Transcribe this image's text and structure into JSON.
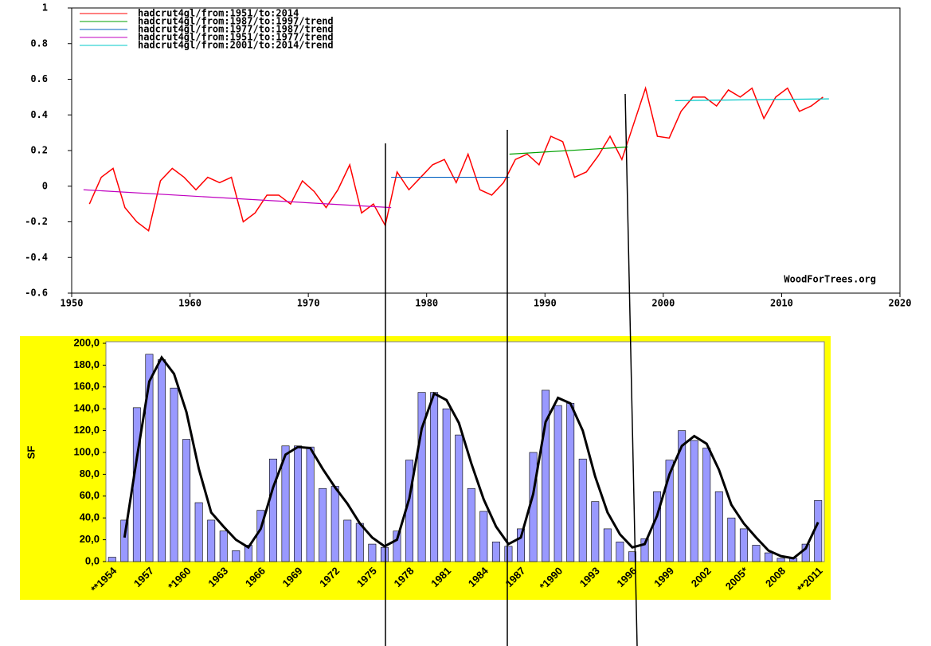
{
  "chart_data": [
    {
      "type": "line",
      "annotation": "WoodForTrees.org",
      "xlim": [
        1950,
        2020
      ],
      "xticks": [
        1950,
        1960,
        1970,
        1980,
        1990,
        2000,
        2010,
        2020
      ],
      "ylim": [
        -0.6,
        1
      ],
      "yticks": [
        -0.6,
        -0.4,
        -0.2,
        0,
        0.2,
        0.4,
        0.6,
        0.8,
        1
      ],
      "series": [
        {
          "name": "hadcrut4gl/from:1951/to:2014",
          "color": "#ff0000",
          "x": [
            1951.5,
            1952.5,
            1953.5,
            1954.5,
            1955.5,
            1956.5,
            1957.5,
            1958.5,
            1959.5,
            1960.5,
            1961.5,
            1962.5,
            1963.5,
            1964.5,
            1965.5,
            1966.5,
            1967.5,
            1968.5,
            1969.5,
            1970.5,
            1971.5,
            1972.5,
            1973.5,
            1974.5,
            1975.5,
            1976.5,
            1977.5,
            1978.5,
            1979.5,
            1980.5,
            1981.5,
            1982.5,
            1983.5,
            1984.5,
            1985.5,
            1986.5,
            1987.5,
            1988.5,
            1989.5,
            1990.5,
            1991.5,
            1992.5,
            1993.5,
            1994.5,
            1995.5,
            1996.5,
            1997.5,
            1998.5,
            1999.5,
            2000.5,
            2001.5,
            2002.5,
            2003.5,
            2004.5,
            2005.5,
            2006.5,
            2007.5,
            2008.5,
            2009.5,
            2010.5,
            2011.5,
            2012.5,
            2013.5
          ],
          "values": [
            -0.1,
            0.05,
            0.1,
            -0.12,
            -0.2,
            -0.25,
            0.03,
            0.1,
            0.05,
            -0.02,
            0.05,
            0.02,
            0.05,
            -0.2,
            -0.15,
            -0.05,
            -0.05,
            -0.1,
            0.03,
            -0.03,
            -0.12,
            -0.02,
            0.12,
            -0.15,
            -0.1,
            -0.22,
            0.08,
            -0.02,
            0.05,
            0.12,
            0.15,
            0.02,
            0.18,
            -0.02,
            -0.05,
            0.02,
            0.15,
            0.18,
            0.12,
            0.28,
            0.25,
            0.05,
            0.08,
            0.17,
            0.28,
            0.15,
            0.35,
            0.55,
            0.28,
            0.27,
            0.42,
            0.5,
            0.5,
            0.45,
            0.54,
            0.5,
            0.55,
            0.38,
            0.5,
            0.55,
            0.42,
            0.45,
            0.5
          ]
        },
        {
          "name": "hadcrut4gl/from:1987/to:1997/trend",
          "color": "#00a000",
          "x": [
            1987,
            1997
          ],
          "values": [
            0.18,
            0.22
          ]
        },
        {
          "name": "hadcrut4gl/from:1977/to:1987/trend",
          "color": "#0060c0",
          "x": [
            1977,
            1987
          ],
          "values": [
            0.05,
            0.05
          ]
        },
        {
          "name": "hadcrut4gl/from:1951/to:1977/trend",
          "color": "#c000c0",
          "x": [
            1951,
            1977
          ],
          "values": [
            -0.02,
            -0.12
          ]
        },
        {
          "name": "hadcrut4gl/from:2001/to:2014/trend",
          "color": "#00c8c8",
          "x": [
            2001,
            2014
          ],
          "values": [
            0.48,
            0.49
          ]
        }
      ]
    },
    {
      "type": "bar",
      "y_label": "SF",
      "background": "#ffff00",
      "ylim": [
        0,
        200
      ],
      "yticks": [
        {
          "value": 0,
          "label": "0,0"
        },
        {
          "value": 20,
          "label": "20,0"
        },
        {
          "value": 40,
          "label": "40,0"
        },
        {
          "value": 60,
          "label": "60,0"
        },
        {
          "value": 80,
          "label": "80,0"
        },
        {
          "value": 100,
          "label": "100,0"
        },
        {
          "value": 120,
          "label": "120,0"
        },
        {
          "value": 140,
          "label": "140,0"
        },
        {
          "value": 160,
          "label": "160,0"
        },
        {
          "value": 180,
          "label": "180,0"
        },
        {
          "value": 200,
          "label": "200,0"
        }
      ],
      "categories": [
        "**1954",
        null,
        null,
        "1957",
        null,
        null,
        "*1960",
        null,
        null,
        "1963",
        null,
        null,
        "1966",
        null,
        null,
        "1969",
        null,
        null,
        "1972",
        null,
        null,
        "1975",
        null,
        null,
        "1978",
        null,
        null,
        "1981",
        null,
        null,
        "1984",
        null,
        null,
        "1987",
        null,
        null,
        "*1990",
        null,
        null,
        "1993",
        null,
        null,
        "1996",
        null,
        null,
        "1999",
        null,
        null,
        "2002",
        null,
        null,
        "2005*",
        null,
        null,
        "2008",
        null,
        null,
        "**2011"
      ],
      "series": [
        {
          "type": "bar",
          "color": "#9999ff",
          "values": [
            4,
            38,
            141,
            190,
            185,
            159,
            112,
            54,
            38,
            28,
            10,
            15,
            47,
            94,
            106,
            106,
            105,
            67,
            69,
            38,
            35,
            16,
            13,
            28,
            93,
            155,
            155,
            140,
            116,
            67,
            46,
            18,
            14,
            30,
            100,
            157,
            143,
            145,
            94,
            55,
            30,
            18,
            9,
            21,
            64,
            93,
            120,
            111,
            104,
            64,
            40,
            30,
            15,
            8,
            3,
            3,
            16,
            56
          ]
        },
        {
          "type": "line",
          "color": "#000000",
          "values": [
            null,
            22,
            95,
            165,
            187,
            172,
            137,
            85,
            45,
            32,
            20,
            13,
            30,
            68,
            98,
            105,
            104,
            85,
            68,
            53,
            35,
            22,
            14,
            20,
            58,
            122,
            154,
            148,
            127,
            90,
            57,
            32,
            16,
            22,
            62,
            128,
            150,
            145,
            120,
            78,
            45,
            25,
            13,
            16,
            42,
            80,
            106,
            115,
            108,
            84,
            52,
            35,
            22,
            10,
            5,
            3,
            12,
            36
          ]
        }
      ]
    }
  ]
}
